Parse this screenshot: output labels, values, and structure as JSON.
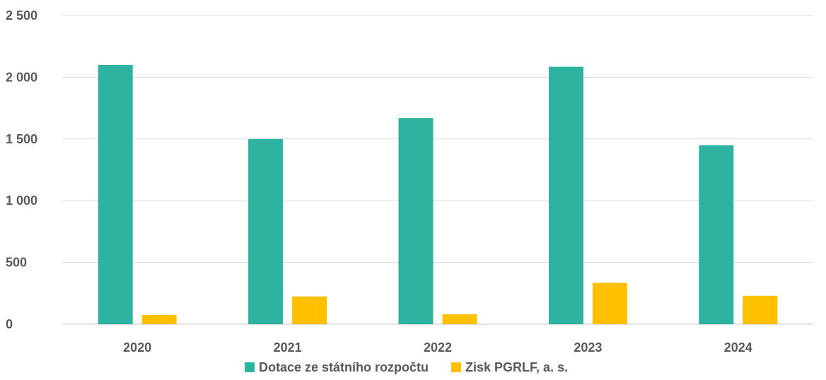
{
  "chart_data": {
    "type": "bar",
    "title": "",
    "xlabel": "",
    "ylabel": "",
    "categories": [
      "2020",
      "2021",
      "2022",
      "2023",
      "2024"
    ],
    "series": [
      {
        "name": "Dotace ze státního rozpočtu",
        "color": "#2EB3A0",
        "values": [
          2100,
          1500,
          1670,
          2085,
          1450
        ]
      },
      {
        "name": "Zisk PGRLF, a. s.",
        "color": "#FFC000",
        "values": [
          75,
          225,
          80,
          335,
          230
        ]
      }
    ],
    "ylim": [
      0,
      2500
    ],
    "yticks": [
      0,
      500,
      1000,
      1500,
      2000,
      2500
    ],
    "ytick_labels": [
      "0",
      "500",
      "1 000",
      "1 500",
      "2 000",
      "2 500"
    ],
    "grid": true,
    "legend_position": "bottom"
  }
}
